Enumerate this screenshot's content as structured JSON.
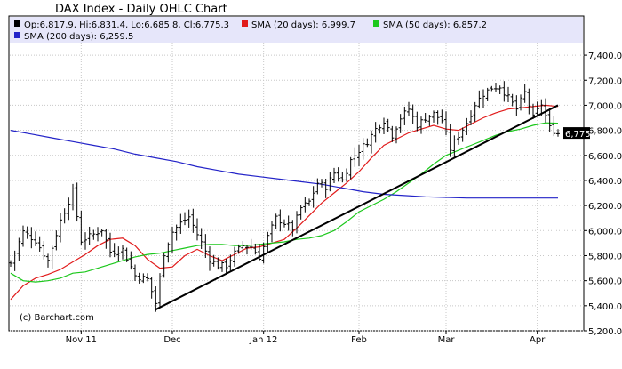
{
  "chart_data": {
    "type": "line",
    "title": "DAX Index - Daily OHLC Chart",
    "legend": [
      {
        "name": "Op:6,817.9, Hi:6,831.4, Lo:6,685.8, Cl:6,775.3",
        "color": "#000000"
      },
      {
        "name": "SMA (20 days): 6,999.7",
        "color": "#e11b1b"
      },
      {
        "name": "SMA (50 days): 6,857.2",
        "color": "#1cc81c"
      },
      {
        "name": "SMA (200 days): 6,259.5",
        "color": "#2323c8"
      }
    ],
    "legend_placement": "top",
    "watermark": "(c) Barchart.com",
    "grid": true,
    "ylim": [
      5200,
      7500
    ],
    "y_ticks": [
      5200,
      5400,
      5600,
      5800,
      6000,
      6200,
      6400,
      6600,
      6800,
      7000,
      7200,
      7400
    ],
    "y_tick_labels": [
      "5,200.0",
      "5,400.0",
      "5,600.0",
      "5,800.0",
      "6,000.0",
      "6,200.0",
      "6,400.0",
      "6,600.0",
      "6,800.0",
      "7,000.0",
      "7,200.0",
      "7,400.0"
    ],
    "x_range": [
      0,
      132
    ],
    "x_ticks": [
      {
        "label": "Nov 11",
        "x": 17
      },
      {
        "label": "Dec",
        "x": 39
      },
      {
        "label": "Jan 12",
        "x": 61
      },
      {
        "label": "Feb",
        "x": 84
      },
      {
        "label": "Mar",
        "x": 105
      },
      {
        "label": "Apr",
        "x": 127
      }
    ],
    "last_close": {
      "label": "6,775.3",
      "value": 6775.3
    },
    "trendline": {
      "x": [
        35,
        132
      ],
      "y": [
        5370,
        7000
      ],
      "color": "#000000"
    },
    "ohlc_keypoints": [
      [
        0,
        5740
      ],
      [
        3,
        5990
      ],
      [
        6,
        5920
      ],
      [
        9,
        5760
      ],
      [
        12,
        6080
      ],
      [
        15,
        6310
      ],
      [
        17,
        5920
      ],
      [
        20,
        5970
      ],
      [
        22,
        6010
      ],
      [
        24,
        5830
      ],
      [
        27,
        5850
      ],
      [
        30,
        5640
      ],
      [
        33,
        5610
      ],
      [
        35,
        5420
      ],
      [
        37,
        5820
      ],
      [
        39,
        5990
      ],
      [
        41,
        6060
      ],
      [
        43,
        6110
      ],
      [
        45,
        5970
      ],
      [
        48,
        5770
      ],
      [
        50,
        5720
      ],
      [
        52,
        5720
      ],
      [
        54,
        5820
      ],
      [
        56,
        5880
      ],
      [
        58,
        5870
      ],
      [
        60,
        5790
      ],
      [
        62,
        5950
      ],
      [
        64,
        6100
      ],
      [
        66,
        6060
      ],
      [
        68,
        6020
      ],
      [
        70,
        6180
      ],
      [
        72,
        6230
      ],
      [
        74,
        6380
      ],
      [
        76,
        6350
      ],
      [
        78,
        6460
      ],
      [
        80,
        6400
      ],
      [
        82,
        6560
      ],
      [
        84,
        6640
      ],
      [
        86,
        6710
      ],
      [
        88,
        6810
      ],
      [
        90,
        6880
      ],
      [
        92,
        6760
      ],
      [
        94,
        6900
      ],
      [
        96,
        6970
      ],
      [
        98,
        6840
      ],
      [
        100,
        6900
      ],
      [
        102,
        6930
      ],
      [
        104,
        6880
      ],
      [
        106,
        6650
      ],
      [
        108,
        6760
      ],
      [
        110,
        6860
      ],
      [
        112,
        7010
      ],
      [
        114,
        7090
      ],
      [
        116,
        7140
      ],
      [
        118,
        7150
      ],
      [
        120,
        7060
      ],
      [
        122,
        6970
      ],
      [
        124,
        7100
      ],
      [
        126,
        6900
      ],
      [
        128,
        7010
      ],
      [
        130,
        6820
      ],
      [
        132,
        6775
      ]
    ],
    "series": [
      {
        "name": "SMA (20 days)",
        "color": "#e11b1b",
        "points": [
          [
            0,
            5450
          ],
          [
            3,
            5560
          ],
          [
            6,
            5620
          ],
          [
            9,
            5650
          ],
          [
            12,
            5690
          ],
          [
            15,
            5750
          ],
          [
            18,
            5810
          ],
          [
            21,
            5880
          ],
          [
            24,
            5930
          ],
          [
            27,
            5940
          ],
          [
            30,
            5880
          ],
          [
            33,
            5770
          ],
          [
            36,
            5700
          ],
          [
            39,
            5710
          ],
          [
            42,
            5800
          ],
          [
            45,
            5850
          ],
          [
            48,
            5800
          ],
          [
            51,
            5760
          ],
          [
            54,
            5810
          ],
          [
            57,
            5860
          ],
          [
            60,
            5870
          ],
          [
            63,
            5900
          ],
          [
            66,
            5930
          ],
          [
            69,
            6020
          ],
          [
            72,
            6120
          ],
          [
            75,
            6220
          ],
          [
            78,
            6300
          ],
          [
            81,
            6380
          ],
          [
            84,
            6470
          ],
          [
            87,
            6580
          ],
          [
            90,
            6680
          ],
          [
            93,
            6730
          ],
          [
            96,
            6780
          ],
          [
            99,
            6810
          ],
          [
            102,
            6840
          ],
          [
            105,
            6810
          ],
          [
            108,
            6800
          ],
          [
            111,
            6850
          ],
          [
            114,
            6900
          ],
          [
            117,
            6940
          ],
          [
            120,
            6970
          ],
          [
            123,
            6980
          ],
          [
            126,
            6990
          ],
          [
            129,
            7000
          ],
          [
            132,
            6990
          ]
        ]
      },
      {
        "name": "SMA (50 days)",
        "color": "#1cc81c",
        "points": [
          [
            0,
            5660
          ],
          [
            3,
            5600
          ],
          [
            6,
            5590
          ],
          [
            9,
            5600
          ],
          [
            12,
            5620
          ],
          [
            15,
            5660
          ],
          [
            18,
            5670
          ],
          [
            21,
            5700
          ],
          [
            24,
            5730
          ],
          [
            27,
            5760
          ],
          [
            30,
            5790
          ],
          [
            33,
            5810
          ],
          [
            36,
            5820
          ],
          [
            39,
            5840
          ],
          [
            42,
            5860
          ],
          [
            45,
            5880
          ],
          [
            48,
            5890
          ],
          [
            51,
            5890
          ],
          [
            54,
            5880
          ],
          [
            57,
            5880
          ],
          [
            60,
            5890
          ],
          [
            63,
            5900
          ],
          [
            66,
            5910
          ],
          [
            69,
            5930
          ],
          [
            72,
            5940
          ],
          [
            75,
            5960
          ],
          [
            78,
            6000
          ],
          [
            81,
            6070
          ],
          [
            84,
            6150
          ],
          [
            87,
            6200
          ],
          [
            90,
            6250
          ],
          [
            93,
            6310
          ],
          [
            96,
            6380
          ],
          [
            99,
            6450
          ],
          [
            102,
            6530
          ],
          [
            105,
            6600
          ],
          [
            108,
            6640
          ],
          [
            111,
            6680
          ],
          [
            114,
            6720
          ],
          [
            117,
            6760
          ],
          [
            120,
            6790
          ],
          [
            123,
            6810
          ],
          [
            126,
            6840
          ],
          [
            129,
            6860
          ],
          [
            132,
            6857
          ]
        ]
      },
      {
        "name": "SMA (200 days)",
        "color": "#2323c8",
        "points": [
          [
            0,
            6800
          ],
          [
            5,
            6770
          ],
          [
            10,
            6740
          ],
          [
            15,
            6710
          ],
          [
            20,
            6680
          ],
          [
            25,
            6650
          ],
          [
            30,
            6610
          ],
          [
            35,
            6580
          ],
          [
            40,
            6550
          ],
          [
            45,
            6510
          ],
          [
            50,
            6480
          ],
          [
            55,
            6450
          ],
          [
            60,
            6430
          ],
          [
            65,
            6410
          ],
          [
            70,
            6390
          ],
          [
            75,
            6370
          ],
          [
            80,
            6340
          ],
          [
            85,
            6310
          ],
          [
            90,
            6290
          ],
          [
            95,
            6280
          ],
          [
            100,
            6270
          ],
          [
            105,
            6265
          ],
          [
            110,
            6260
          ],
          [
            115,
            6260
          ],
          [
            120,
            6260
          ],
          [
            125,
            6260
          ],
          [
            132,
            6259.5
          ]
        ]
      }
    ]
  }
}
